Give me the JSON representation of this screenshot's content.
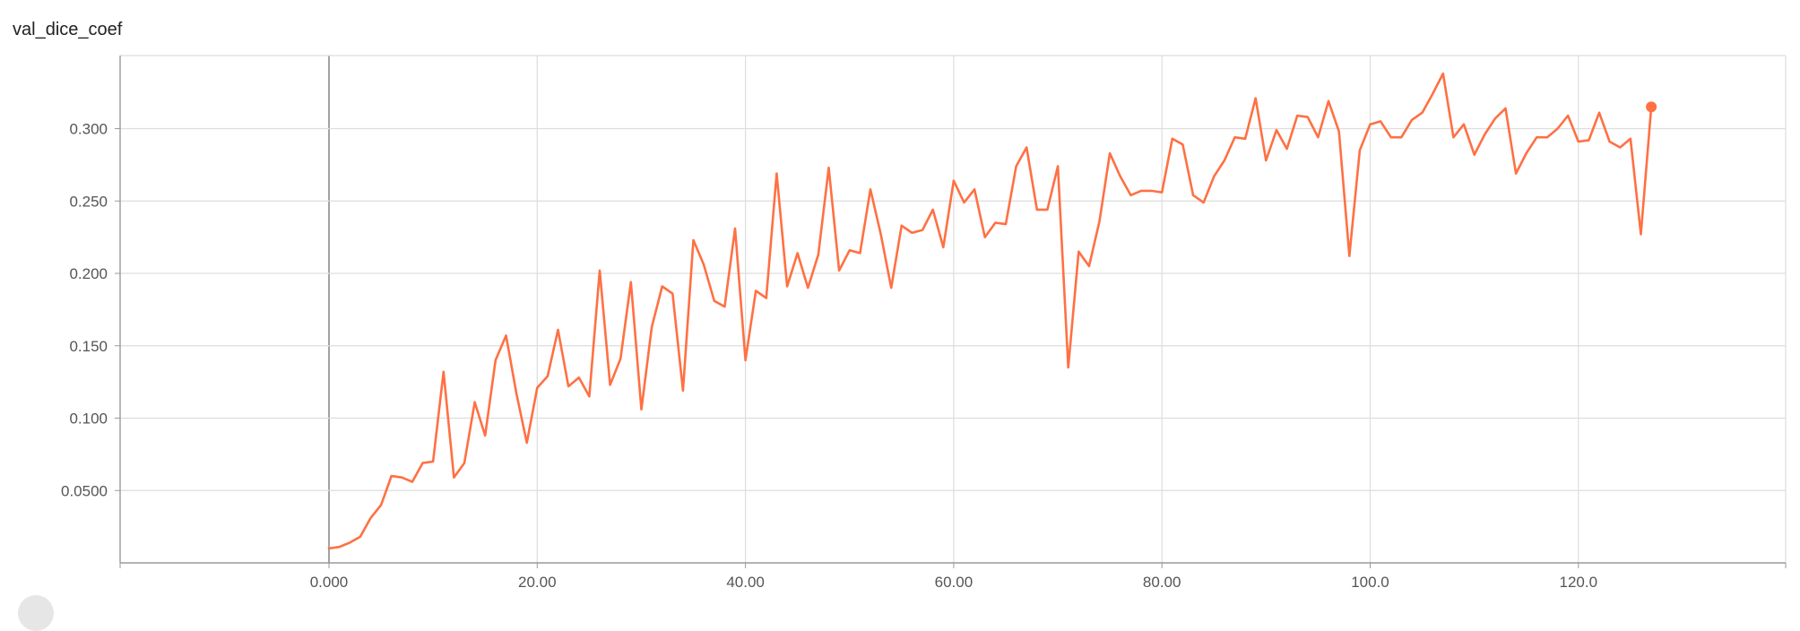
{
  "chart_data": {
    "type": "line",
    "title": "val_dice_coef",
    "xlabel": "",
    "ylabel": "",
    "xlim": [
      -20,
      140
    ],
    "ylim": [
      0,
      0.35
    ],
    "grid": true,
    "x_ticks": [
      0,
      20,
      40,
      60,
      80,
      100,
      120
    ],
    "x_tick_labels": [
      "0.000",
      "20.00",
      "40.00",
      "60.00",
      "80.00",
      "100.0",
      "120.0"
    ],
    "y_ticks": [
      0.05,
      0.1,
      0.15,
      0.2,
      0.25,
      0.3
    ],
    "y_tick_labels": [
      "0.0500",
      "0.100",
      "0.150",
      "0.200",
      "0.250",
      "0.300"
    ],
    "line_color": "#ff7043",
    "series": [
      {
        "x": [
          0,
          1,
          2,
          3,
          4,
          5,
          6,
          7,
          8,
          9,
          10,
          11,
          12,
          13,
          14,
          15,
          16,
          17,
          18,
          19,
          20,
          21,
          22,
          23,
          24,
          25,
          26,
          27,
          28,
          29,
          30,
          31,
          32,
          33,
          34,
          35,
          36,
          37,
          38,
          39,
          40,
          41,
          42,
          43,
          44,
          45,
          46,
          47,
          48,
          49,
          50,
          51,
          52,
          53,
          54,
          55,
          56,
          57,
          58,
          59,
          60,
          61,
          62,
          63,
          64,
          65,
          66,
          67,
          68,
          69,
          70,
          71,
          72,
          73,
          74,
          75,
          76,
          77,
          78,
          79,
          80,
          81,
          82,
          83,
          84,
          85,
          86,
          87,
          88,
          89,
          90,
          91,
          92,
          93,
          94,
          95,
          96,
          97,
          98,
          99,
          100,
          101,
          102,
          103,
          104,
          105,
          106,
          107,
          108,
          109,
          110,
          111,
          112,
          113,
          114,
          115,
          116,
          117,
          118,
          119,
          120,
          121,
          122,
          123,
          124,
          125,
          126,
          127
        ],
        "values": [
          0.01,
          0.011,
          0.014,
          0.018,
          0.031,
          0.04,
          0.06,
          0.059,
          0.056,
          0.069,
          0.07,
          0.132,
          0.059,
          0.069,
          0.111,
          0.088,
          0.14,
          0.157,
          0.117,
          0.083,
          0.121,
          0.129,
          0.161,
          0.122,
          0.128,
          0.115,
          0.202,
          0.123,
          0.141,
          0.194,
          0.106,
          0.163,
          0.191,
          0.186,
          0.119,
          0.223,
          0.206,
          0.181,
          0.177,
          0.231,
          0.14,
          0.188,
          0.183,
          0.269,
          0.191,
          0.214,
          0.19,
          0.213,
          0.273,
          0.202,
          0.216,
          0.214,
          0.258,
          0.227,
          0.19,
          0.233,
          0.228,
          0.23,
          0.244,
          0.218,
          0.264,
          0.249,
          0.258,
          0.225,
          0.235,
          0.234,
          0.274,
          0.287,
          0.244,
          0.244,
          0.274,
          0.135,
          0.215,
          0.205,
          0.236,
          0.283,
          0.267,
          0.254,
          0.257,
          0.257,
          0.256,
          0.293,
          0.289,
          0.254,
          0.249,
          0.267,
          0.278,
          0.294,
          0.293,
          0.321,
          0.278,
          0.299,
          0.286,
          0.309,
          0.308,
          0.294,
          0.319,
          0.298,
          0.212,
          0.285,
          0.303,
          0.305,
          0.294,
          0.294,
          0.306,
          0.311,
          0.324,
          0.338,
          0.294,
          0.303,
          0.282,
          0.296,
          0.307,
          0.314,
          0.269,
          0.283,
          0.294,
          0.294,
          0.3,
          0.309,
          0.291,
          0.292,
          0.311,
          0.291,
          0.287,
          0.293,
          0.227,
          0.315
        ]
      }
    ]
  }
}
